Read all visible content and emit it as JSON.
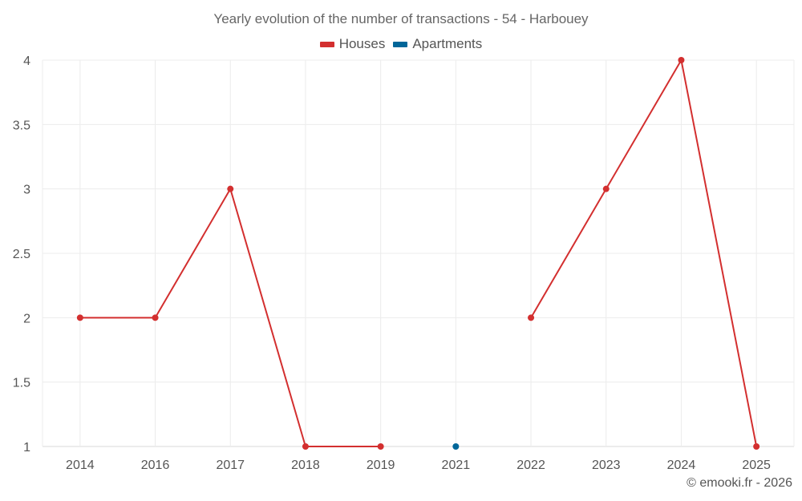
{
  "chart_data": {
    "type": "line",
    "title": "Yearly evolution of the number of transactions - 54 - Harbouey",
    "categories": [
      "2014",
      "2016",
      "2017",
      "2018",
      "2019",
      "2021",
      "2022",
      "2023",
      "2024",
      "2025"
    ],
    "series": [
      {
        "name": "Houses",
        "color": "#d32f2f",
        "values": [
          2,
          2,
          3,
          1,
          1,
          null,
          2,
          3,
          4,
          1
        ]
      },
      {
        "name": "Apartments",
        "color": "#006699",
        "values": [
          null,
          null,
          null,
          null,
          null,
          1,
          null,
          null,
          null,
          null
        ]
      }
    ],
    "y_ticks": [
      "1",
      "1.5",
      "2",
      "2.5",
      "3",
      "3.5",
      "4"
    ],
    "ylim": [
      1,
      4
    ],
    "grid": true,
    "legend_position": "top-center"
  },
  "credit": "© emooki.fr - 2026"
}
